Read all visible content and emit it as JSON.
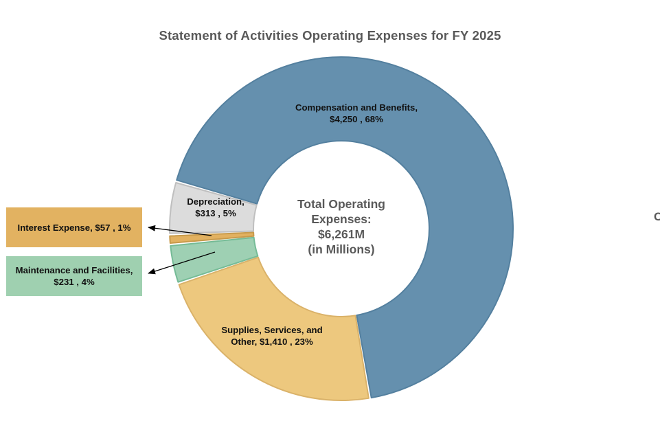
{
  "page": {
    "background": "#ffffff"
  },
  "title": "Statement of Activities Operating Expenses for FY 2025",
  "edge_fragment": "C",
  "chart_data": {
    "type": "pie",
    "subtype": "donut",
    "title": "Statement of Activities Operating Expenses for FY 2025",
    "units": "USD millions",
    "total_value": 6261,
    "center_label_lines": [
      "Total Operating",
      "Expenses:",
      "$6,261M",
      "(in Millions)"
    ],
    "start_angle_deg": -74,
    "direction": "clockwise",
    "legend_position": "none",
    "slices": [
      {
        "id": "compensation",
        "name": "Compensation and Benefits",
        "value": 4250,
        "pct": "68%",
        "color": "#6590ae",
        "stroke": "#54809f",
        "label_lines": [
          "Compensation and Benefits,",
          "$4,250 , 68%"
        ]
      },
      {
        "id": "supplies",
        "name": "Supplies, Services, and Other",
        "value": 1410,
        "pct": "23%",
        "color": "#edc87e",
        "stroke": "#dab269",
        "label_lines": [
          "Supplies, Services, and",
          "Other,  $1,410 , 23%"
        ]
      },
      {
        "id": "maintenance",
        "name": "Maintenance and Facilities",
        "value": 231,
        "pct": "4%",
        "color": "#9ed0b3",
        "stroke": "#75bb96",
        "label_lines": [
          "Maintenance and Facilities,",
          "$231 , 4%"
        ]
      },
      {
        "id": "interest",
        "name": "Interest Expense",
        "value": 57,
        "pct": "1%",
        "color": "#e2b160",
        "stroke": "#c79a4b",
        "label_lines": [
          "Interest Expense,  $57 , 1%"
        ]
      },
      {
        "id": "depreciation",
        "name": "Depreciation",
        "value": 313,
        "pct": "5%",
        "color": "#dcdcdc",
        "stroke": "#bfbfbf",
        "label_lines": [
          "Depreciation,",
          "$313 , 5%"
        ]
      }
    ],
    "callouts": [
      {
        "for": "Interest Expense",
        "box_color": "#e2b261",
        "lines": [
          "Interest Expense,  $57 , 1%"
        ]
      },
      {
        "for": "Maintenance and Facilities",
        "box_color": "#9fd0b0",
        "lines": [
          "Maintenance and Facilities,",
          "$231 , 4%"
        ]
      }
    ]
  }
}
